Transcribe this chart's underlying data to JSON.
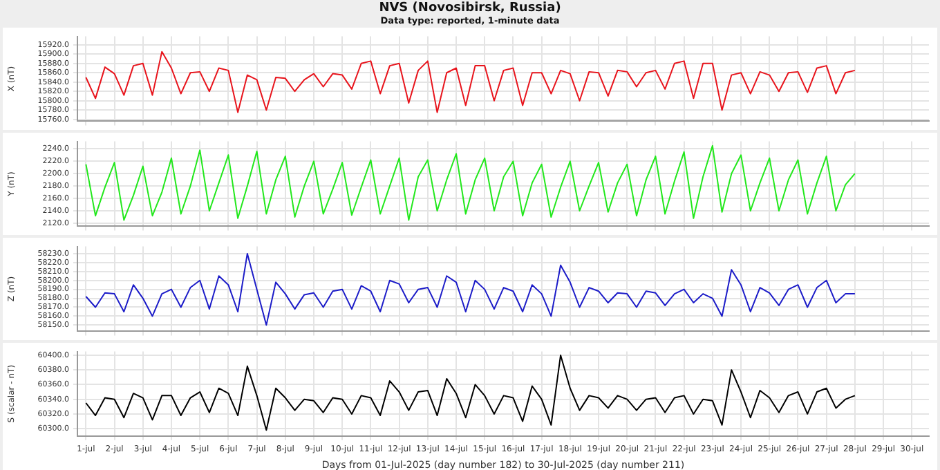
{
  "chart_data": [
    {
      "type": "line",
      "title": "NVS (Novosibirsk, Russia)",
      "subtitle": "Data type: reported, 1-minute data",
      "ylabel": "X (nT)",
      "grid": true,
      "tick_labels": "y",
      "x": [
        "2025-07-01",
        "2025-07-01T08:00",
        "2025-07-01T16:00",
        "2025-07-02",
        "2025-07-02T08:00",
        "2025-07-02T16:00",
        "2025-07-03",
        "2025-07-03T08:00",
        "2025-07-03T16:00",
        "2025-07-04",
        "2025-07-04T08:00",
        "2025-07-04T16:00",
        "2025-07-05",
        "2025-07-05T08:00",
        "2025-07-05T16:00",
        "2025-07-06",
        "2025-07-06T08:00",
        "2025-07-06T16:00",
        "2025-07-07",
        "2025-07-07T08:00",
        "2025-07-07T16:00",
        "2025-07-08",
        "2025-07-08T08:00",
        "2025-07-08T16:00",
        "2025-07-09",
        "2025-07-09T08:00",
        "2025-07-09T16:00",
        "2025-07-10",
        "2025-07-10T08:00",
        "2025-07-10T16:00",
        "2025-07-11",
        "2025-07-11T08:00",
        "2025-07-11T16:00",
        "2025-07-12",
        "2025-07-12T08:00",
        "2025-07-12T16:00",
        "2025-07-13",
        "2025-07-13T08:00",
        "2025-07-13T16:00",
        "2025-07-14",
        "2025-07-14T08:00",
        "2025-07-14T16:00",
        "2025-07-15",
        "2025-07-15T08:00",
        "2025-07-15T16:00",
        "2025-07-16",
        "2025-07-16T08:00",
        "2025-07-16T16:00",
        "2025-07-17",
        "2025-07-17T08:00",
        "2025-07-17T16:00",
        "2025-07-18",
        "2025-07-18T08:00",
        "2025-07-18T16:00",
        "2025-07-19",
        "2025-07-19T08:00",
        "2025-07-19T16:00",
        "2025-07-20",
        "2025-07-20T08:00",
        "2025-07-20T16:00",
        "2025-07-21",
        "2025-07-21T08:00",
        "2025-07-21T16:00",
        "2025-07-22",
        "2025-07-22T08:00",
        "2025-07-22T16:00",
        "2025-07-23",
        "2025-07-23T08:00",
        "2025-07-23T16:00",
        "2025-07-24",
        "2025-07-24T08:00",
        "2025-07-24T16:00",
        "2025-07-25",
        "2025-07-25T08:00",
        "2025-07-25T16:00",
        "2025-07-26",
        "2025-07-26T08:00",
        "2025-07-26T16:00",
        "2025-07-27",
        "2025-07-27T08:00",
        "2025-07-27T16:00",
        "2025-07-28"
      ],
      "series": [
        {
          "color": "#e8141c",
          "values": [
            15850,
            15805,
            15872,
            15858,
            15812,
            15875,
            15880,
            15812,
            15905,
            15870,
            15815,
            15860,
            15862,
            15820,
            15870,
            15865,
            15775,
            15855,
            15845,
            15780,
            15850,
            15848,
            15820,
            15845,
            15858,
            15830,
            15858,
            15855,
            15825,
            15880,
            15885,
            15815,
            15875,
            15880,
            15795,
            15865,
            15885,
            15775,
            15860,
            15870,
            15790,
            15875,
            15875,
            15800,
            15865,
            15870,
            15790,
            15860,
            15860,
            15815,
            15865,
            15858,
            15800,
            15862,
            15860,
            15810,
            15865,
            15862,
            15830,
            15860,
            15865,
            15825,
            15880,
            15885,
            15805,
            15880,
            15880,
            15780,
            15855,
            15860,
            15815,
            15862,
            15855,
            15820,
            15860,
            15862,
            15818,
            15870,
            15875,
            15815,
            15860,
            15865
          ]
        }
      ],
      "xlim": [
        "2025-06-30T16:48",
        "2025-07-30T14:24"
      ],
      "xticks": [
        {
          "value": "2025-07-01",
          "label": null
        },
        {
          "value": "2025-07-02",
          "label": null
        },
        {
          "value": "2025-07-03",
          "label": null
        },
        {
          "value": "2025-07-04",
          "label": null
        },
        {
          "value": "2025-07-05",
          "label": null
        },
        {
          "value": "2025-07-06",
          "label": null
        },
        {
          "value": "2025-07-07",
          "label": null
        },
        {
          "value": "2025-07-08",
          "label": null
        },
        {
          "value": "2025-07-09",
          "label": null
        },
        {
          "value": "2025-07-10",
          "label": null
        },
        {
          "value": "2025-07-11",
          "label": null
        },
        {
          "value": "2025-07-12",
          "label": null
        },
        {
          "value": "2025-07-13",
          "label": null
        },
        {
          "value": "2025-07-14",
          "label": null
        },
        {
          "value": "2025-07-15",
          "label": null
        },
        {
          "value": "2025-07-16",
          "label": null
        },
        {
          "value": "2025-07-17",
          "label": null
        },
        {
          "value": "2025-07-18",
          "label": null
        },
        {
          "value": "2025-07-19",
          "label": null
        },
        {
          "value": "2025-07-20",
          "label": null
        },
        {
          "value": "2025-07-21",
          "label": null
        },
        {
          "value": "2025-07-22",
          "label": null
        },
        {
          "value": "2025-07-23",
          "label": null
        },
        {
          "value": "2025-07-24",
          "label": null
        },
        {
          "value": "2025-07-25",
          "label": null
        },
        {
          "value": "2025-07-26",
          "label": null
        },
        {
          "value": "2025-07-27",
          "label": null
        },
        {
          "value": "2025-07-28",
          "label": null
        },
        {
          "value": "2025-07-29",
          "label": null
        },
        {
          "value": "2025-07-30",
          "label": null
        }
      ],
      "ylim": [
        15756,
        15938
      ],
      "yticks": [
        {
          "value": 15760,
          "label": "15760.0"
        },
        {
          "value": 15780,
          "label": "15780.0"
        },
        {
          "value": 15800,
          "label": "15800.0"
        },
        {
          "value": 15820,
          "label": "15820.0"
        },
        {
          "value": 15840,
          "label": "15840.0"
        },
        {
          "value": 15860,
          "label": "15860.0"
        },
        {
          "value": 15880,
          "label": "15880.0"
        },
        {
          "value": 15900,
          "label": "15900.0"
        },
        {
          "value": 15920,
          "label": "15920.0"
        }
      ]
    },
    {
      "type": "line",
      "ylabel": "Y (nT)",
      "grid": true,
      "tick_labels": "y",
      "x": [
        "2025-07-01",
        "2025-07-01T08:00",
        "2025-07-01T16:00",
        "2025-07-02",
        "2025-07-02T08:00",
        "2025-07-02T16:00",
        "2025-07-03",
        "2025-07-03T08:00",
        "2025-07-03T16:00",
        "2025-07-04",
        "2025-07-04T08:00",
        "2025-07-04T16:00",
        "2025-07-05",
        "2025-07-05T08:00",
        "2025-07-05T16:00",
        "2025-07-06",
        "2025-07-06T08:00",
        "2025-07-06T16:00",
        "2025-07-07",
        "2025-07-07T08:00",
        "2025-07-07T16:00",
        "2025-07-08",
        "2025-07-08T08:00",
        "2025-07-08T16:00",
        "2025-07-09",
        "2025-07-09T08:00",
        "2025-07-09T16:00",
        "2025-07-10",
        "2025-07-10T08:00",
        "2025-07-10T16:00",
        "2025-07-11",
        "2025-07-11T08:00",
        "2025-07-11T16:00",
        "2025-07-12",
        "2025-07-12T08:00",
        "2025-07-12T16:00",
        "2025-07-13",
        "2025-07-13T08:00",
        "2025-07-13T16:00",
        "2025-07-14",
        "2025-07-14T08:00",
        "2025-07-14T16:00",
        "2025-07-15",
        "2025-07-15T08:00",
        "2025-07-15T16:00",
        "2025-07-16",
        "2025-07-16T08:00",
        "2025-07-16T16:00",
        "2025-07-17",
        "2025-07-17T08:00",
        "2025-07-17T16:00",
        "2025-07-18",
        "2025-07-18T08:00",
        "2025-07-18T16:00",
        "2025-07-19",
        "2025-07-19T08:00",
        "2025-07-19T16:00",
        "2025-07-20",
        "2025-07-20T08:00",
        "2025-07-20T16:00",
        "2025-07-21",
        "2025-07-21T08:00",
        "2025-07-21T16:00",
        "2025-07-22",
        "2025-07-22T08:00",
        "2025-07-22T16:00",
        "2025-07-23",
        "2025-07-23T08:00",
        "2025-07-23T16:00",
        "2025-07-24",
        "2025-07-24T08:00",
        "2025-07-24T16:00",
        "2025-07-25",
        "2025-07-25T08:00",
        "2025-07-25T16:00",
        "2025-07-26",
        "2025-07-26T08:00",
        "2025-07-26T16:00",
        "2025-07-27",
        "2025-07-27T08:00",
        "2025-07-27T16:00",
        "2025-07-28"
      ],
      "series": [
        {
          "color": "#22e81c",
          "values": [
            2215,
            2132,
            2178,
            2218,
            2125,
            2165,
            2212,
            2132,
            2170,
            2225,
            2135,
            2180,
            2238,
            2140,
            2185,
            2230,
            2128,
            2180,
            2236,
            2135,
            2190,
            2228,
            2130,
            2180,
            2220,
            2135,
            2175,
            2218,
            2133,
            2178,
            2222,
            2135,
            2180,
            2225,
            2125,
            2195,
            2222,
            2140,
            2190,
            2232,
            2135,
            2190,
            2225,
            2140,
            2195,
            2220,
            2132,
            2185,
            2215,
            2130,
            2178,
            2220,
            2140,
            2180,
            2218,
            2138,
            2185,
            2215,
            2132,
            2190,
            2228,
            2135,
            2188,
            2235,
            2128,
            2195,
            2245,
            2138,
            2200,
            2230,
            2140,
            2185,
            2225,
            2140,
            2190,
            2222,
            2135,
            2185,
            2228,
            2140,
            2182,
            2200
          ]
        }
      ],
      "xlim": [
        "2025-06-30T16:48",
        "2025-07-30T14:24"
      ],
      "xticks": [
        {
          "value": "2025-07-01",
          "label": null
        },
        {
          "value": "2025-07-02",
          "label": null
        },
        {
          "value": "2025-07-03",
          "label": null
        },
        {
          "value": "2025-07-04",
          "label": null
        },
        {
          "value": "2025-07-05",
          "label": null
        },
        {
          "value": "2025-07-06",
          "label": null
        },
        {
          "value": "2025-07-07",
          "label": null
        },
        {
          "value": "2025-07-08",
          "label": null
        },
        {
          "value": "2025-07-09",
          "label": null
        },
        {
          "value": "2025-07-10",
          "label": null
        },
        {
          "value": "2025-07-11",
          "label": null
        },
        {
          "value": "2025-07-12",
          "label": null
        },
        {
          "value": "2025-07-13",
          "label": null
        },
        {
          "value": "2025-07-14",
          "label": null
        },
        {
          "value": "2025-07-15",
          "label": null
        },
        {
          "value": "2025-07-16",
          "label": null
        },
        {
          "value": "2025-07-17",
          "label": null
        },
        {
          "value": "2025-07-18",
          "label": null
        },
        {
          "value": "2025-07-19",
          "label": null
        },
        {
          "value": "2025-07-20",
          "label": null
        },
        {
          "value": "2025-07-21",
          "label": null
        },
        {
          "value": "2025-07-22",
          "label": null
        },
        {
          "value": "2025-07-23",
          "label": null
        },
        {
          "value": "2025-07-24",
          "label": null
        },
        {
          "value": "2025-07-25",
          "label": null
        },
        {
          "value": "2025-07-26",
          "label": null
        },
        {
          "value": "2025-07-27",
          "label": null
        },
        {
          "value": "2025-07-28",
          "label": null
        },
        {
          "value": "2025-07-29",
          "label": null
        },
        {
          "value": "2025-07-30",
          "label": null
        }
      ],
      "ylim": [
        2115,
        2252
      ],
      "yticks": [
        {
          "value": 2120,
          "label": "2120.0"
        },
        {
          "value": 2140,
          "label": "2140.0"
        },
        {
          "value": 2160,
          "label": "2160.0"
        },
        {
          "value": 2180,
          "label": "2180.0"
        },
        {
          "value": 2200,
          "label": "2200.0"
        },
        {
          "value": 2220,
          "label": "2220.0"
        },
        {
          "value": 2240,
          "label": "2240.0"
        }
      ]
    },
    {
      "type": "line",
      "ylabel": "Z (nT)",
      "grid": true,
      "tick_labels": "y",
      "x": [
        "2025-07-01",
        "2025-07-01T08:00",
        "2025-07-01T16:00",
        "2025-07-02",
        "2025-07-02T08:00",
        "2025-07-02T16:00",
        "2025-07-03",
        "2025-07-03T08:00",
        "2025-07-03T16:00",
        "2025-07-04",
        "2025-07-04T08:00",
        "2025-07-04T16:00",
        "2025-07-05",
        "2025-07-05T08:00",
        "2025-07-05T16:00",
        "2025-07-06",
        "2025-07-06T08:00",
        "2025-07-06T16:00",
        "2025-07-07",
        "2025-07-07T08:00",
        "2025-07-07T16:00",
        "2025-07-08",
        "2025-07-08T08:00",
        "2025-07-08T16:00",
        "2025-07-09",
        "2025-07-09T08:00",
        "2025-07-09T16:00",
        "2025-07-10",
        "2025-07-10T08:00",
        "2025-07-10T16:00",
        "2025-07-11",
        "2025-07-11T08:00",
        "2025-07-11T16:00",
        "2025-07-12",
        "2025-07-12T08:00",
        "2025-07-12T16:00",
        "2025-07-13",
        "2025-07-13T08:00",
        "2025-07-13T16:00",
        "2025-07-14",
        "2025-07-14T08:00",
        "2025-07-14T16:00",
        "2025-07-15",
        "2025-07-15T08:00",
        "2025-07-15T16:00",
        "2025-07-16",
        "2025-07-16T08:00",
        "2025-07-16T16:00",
        "2025-07-17",
        "2025-07-17T08:00",
        "2025-07-17T16:00",
        "2025-07-18",
        "2025-07-18T08:00",
        "2025-07-18T16:00",
        "2025-07-19",
        "2025-07-19T08:00",
        "2025-07-19T16:00",
        "2025-07-20",
        "2025-07-20T08:00",
        "2025-07-20T16:00",
        "2025-07-21",
        "2025-07-21T08:00",
        "2025-07-21T16:00",
        "2025-07-22",
        "2025-07-22T08:00",
        "2025-07-22T16:00",
        "2025-07-23",
        "2025-07-23T08:00",
        "2025-07-23T16:00",
        "2025-07-24",
        "2025-07-24T08:00",
        "2025-07-24T16:00",
        "2025-07-25",
        "2025-07-25T08:00",
        "2025-07-25T16:00",
        "2025-07-26",
        "2025-07-26T08:00",
        "2025-07-26T16:00",
        "2025-07-27",
        "2025-07-27T08:00",
        "2025-07-27T16:00",
        "2025-07-28"
      ],
      "series": [
        {
          "color": "#1c1cc8",
          "values": [
            58182,
            58170,
            58186,
            58185,
            58165,
            58195,
            58180,
            58160,
            58185,
            58190,
            58170,
            58192,
            58200,
            58168,
            58205,
            58195,
            58165,
            58230,
            58190,
            58150,
            58198,
            58185,
            58168,
            58184,
            58186,
            58170,
            58188,
            58190,
            58168,
            58194,
            58188,
            58165,
            58200,
            58196,
            58175,
            58190,
            58192,
            58170,
            58205,
            58198,
            58165,
            58200,
            58190,
            58168,
            58192,
            58188,
            58165,
            58195,
            58185,
            58160,
            58217,
            58198,
            58170,
            58192,
            58188,
            58175,
            58186,
            58185,
            58170,
            58188,
            58186,
            58172,
            58185,
            58190,
            58175,
            58185,
            58180,
            58160,
            58212,
            58195,
            58165,
            58192,
            58186,
            58172,
            58190,
            58195,
            58170,
            58192,
            58200,
            58175,
            58185,
            58185
          ]
        }
      ],
      "xlim": [
        "2025-06-30T16:48",
        "2025-07-30T14:24"
      ],
      "xticks": [
        {
          "value": "2025-07-01",
          "label": null
        },
        {
          "value": "2025-07-02",
          "label": null
        },
        {
          "value": "2025-07-03",
          "label": null
        },
        {
          "value": "2025-07-04",
          "label": null
        },
        {
          "value": "2025-07-05",
          "label": null
        },
        {
          "value": "2025-07-06",
          "label": null
        },
        {
          "value": "2025-07-07",
          "label": null
        },
        {
          "value": "2025-07-08",
          "label": null
        },
        {
          "value": "2025-07-09",
          "label": null
        },
        {
          "value": "2025-07-10",
          "label": null
        },
        {
          "value": "2025-07-11",
          "label": null
        },
        {
          "value": "2025-07-12",
          "label": null
        },
        {
          "value": "2025-07-13",
          "label": null
        },
        {
          "value": "2025-07-14",
          "label": null
        },
        {
          "value": "2025-07-15",
          "label": null
        },
        {
          "value": "2025-07-16",
          "label": null
        },
        {
          "value": "2025-07-17",
          "label": null
        },
        {
          "value": "2025-07-18",
          "label": null
        },
        {
          "value": "2025-07-19",
          "label": null
        },
        {
          "value": "2025-07-20",
          "label": null
        },
        {
          "value": "2025-07-21",
          "label": null
        },
        {
          "value": "2025-07-22",
          "label": null
        },
        {
          "value": "2025-07-23",
          "label": null
        },
        {
          "value": "2025-07-24",
          "label": null
        },
        {
          "value": "2025-07-25",
          "label": null
        },
        {
          "value": "2025-07-26",
          "label": null
        },
        {
          "value": "2025-07-27",
          "label": null
        },
        {
          "value": "2025-07-28",
          "label": null
        },
        {
          "value": "2025-07-29",
          "label": null
        },
        {
          "value": "2025-07-30",
          "label": null
        }
      ],
      "ylim": [
        58143,
        58238
      ],
      "yticks": [
        {
          "value": 58150,
          "label": "58150.0"
        },
        {
          "value": 58160,
          "label": "58160.0"
        },
        {
          "value": 58170,
          "label": "58170.0"
        },
        {
          "value": 58180,
          "label": "58180.0"
        },
        {
          "value": 58190,
          "label": "58190.0"
        },
        {
          "value": 58200,
          "label": "58200.0"
        },
        {
          "value": 58210,
          "label": "58210.0"
        },
        {
          "value": 58220,
          "label": "58220.0"
        },
        {
          "value": 58230,
          "label": "58230.0"
        }
      ]
    },
    {
      "type": "line",
      "ylabel": "S (scalar - nT)",
      "xlabel": "Days from 01-Jul-2025 (day number 182) to 30-Jul-2025 (day number 211)",
      "grid": true,
      "x": [
        "2025-07-01",
        "2025-07-01T08:00",
        "2025-07-01T16:00",
        "2025-07-02",
        "2025-07-02T08:00",
        "2025-07-02T16:00",
        "2025-07-03",
        "2025-07-03T08:00",
        "2025-07-03T16:00",
        "2025-07-04",
        "2025-07-04T08:00",
        "2025-07-04T16:00",
        "2025-07-05",
        "2025-07-05T08:00",
        "2025-07-05T16:00",
        "2025-07-06",
        "2025-07-06T08:00",
        "2025-07-06T16:00",
        "2025-07-07",
        "2025-07-07T08:00",
        "2025-07-07T16:00",
        "2025-07-08",
        "2025-07-08T08:00",
        "2025-07-08T16:00",
        "2025-07-09",
        "2025-07-09T08:00",
        "2025-07-09T16:00",
        "2025-07-10",
        "2025-07-10T08:00",
        "2025-07-10T16:00",
        "2025-07-11",
        "2025-07-11T08:00",
        "2025-07-11T16:00",
        "2025-07-12",
        "2025-07-12T08:00",
        "2025-07-12T16:00",
        "2025-07-13",
        "2025-07-13T08:00",
        "2025-07-13T16:00",
        "2025-07-14",
        "2025-07-14T08:00",
        "2025-07-14T16:00",
        "2025-07-15",
        "2025-07-15T08:00",
        "2025-07-15T16:00",
        "2025-07-16",
        "2025-07-16T08:00",
        "2025-07-16T16:00",
        "2025-07-17",
        "2025-07-17T08:00",
        "2025-07-17T16:00",
        "2025-07-18",
        "2025-07-18T08:00",
        "2025-07-18T16:00",
        "2025-07-19",
        "2025-07-19T08:00",
        "2025-07-19T16:00",
        "2025-07-20",
        "2025-07-20T08:00",
        "2025-07-20T16:00",
        "2025-07-21",
        "2025-07-21T08:00",
        "2025-07-21T16:00",
        "2025-07-22",
        "2025-07-22T08:00",
        "2025-07-22T16:00",
        "2025-07-23",
        "2025-07-23T08:00",
        "2025-07-23T16:00",
        "2025-07-24",
        "2025-07-24T08:00",
        "2025-07-24T16:00",
        "2025-07-25",
        "2025-07-25T08:00",
        "2025-07-25T16:00",
        "2025-07-26",
        "2025-07-26T08:00",
        "2025-07-26T16:00",
        "2025-07-27",
        "2025-07-27T08:00",
        "2025-07-27T16:00",
        "2025-07-28"
      ],
      "series": [
        {
          "color": "#000000",
          "values": [
            60335,
            60318,
            60342,
            60340,
            60315,
            60348,
            60342,
            60312,
            60345,
            60345,
            60318,
            60342,
            60350,
            60322,
            60355,
            60348,
            60318,
            60385,
            60345,
            60298,
            60355,
            60342,
            60325,
            60340,
            60338,
            60322,
            60342,
            60340,
            60320,
            60345,
            60342,
            60318,
            60365,
            60350,
            60325,
            60350,
            60352,
            60318,
            60368,
            60348,
            60315,
            60360,
            60345,
            60320,
            60345,
            60342,
            60310,
            60358,
            60340,
            60305,
            60400,
            60355,
            60325,
            60345,
            60342,
            60328,
            60345,
            60340,
            60325,
            60340,
            60342,
            60322,
            60342,
            60345,
            60320,
            60340,
            60338,
            60305,
            60380,
            60350,
            60315,
            60352,
            60342,
            60322,
            60345,
            60350,
            60320,
            60350,
            60355,
            60328,
            60340,
            60345
          ]
        }
      ],
      "xlim": [
        "2025-06-30T16:48",
        "2025-07-30T14:24"
      ],
      "xticks": [
        {
          "value": "2025-07-01",
          "label": "1-jul"
        },
        {
          "value": "2025-07-02",
          "label": "2-jul"
        },
        {
          "value": "2025-07-03",
          "label": "3-jul"
        },
        {
          "value": "2025-07-04",
          "label": "4-jul"
        },
        {
          "value": "2025-07-05",
          "label": "5-jul"
        },
        {
          "value": "2025-07-06",
          "label": "6-jul"
        },
        {
          "value": "2025-07-07",
          "label": "7-jul"
        },
        {
          "value": "2025-07-08",
          "label": "8-jul"
        },
        {
          "value": "2025-07-09",
          "label": "9-jul"
        },
        {
          "value": "2025-07-10",
          "label": "10-jul"
        },
        {
          "value": "2025-07-11",
          "label": "11-jul"
        },
        {
          "value": "2025-07-12",
          "label": "12-jul"
        },
        {
          "value": "2025-07-13",
          "label": "13-jul"
        },
        {
          "value": "2025-07-14",
          "label": "14-jul"
        },
        {
          "value": "2025-07-15",
          "label": "15-jul"
        },
        {
          "value": "2025-07-16",
          "label": "16-jul"
        },
        {
          "value": "2025-07-17",
          "label": "17-jul"
        },
        {
          "value": "2025-07-18",
          "label": "18-jul"
        },
        {
          "value": "2025-07-19",
          "label": "19-jul"
        },
        {
          "value": "2025-07-20",
          "label": "20-jul"
        },
        {
          "value": "2025-07-21",
          "label": "21-jul"
        },
        {
          "value": "2025-07-22",
          "label": "22-jul"
        },
        {
          "value": "2025-07-23",
          "label": "23-jul"
        },
        {
          "value": "2025-07-24",
          "label": "24-jul"
        },
        {
          "value": "2025-07-25",
          "label": "25-jul"
        },
        {
          "value": "2025-07-26",
          "label": "26-jul"
        },
        {
          "value": "2025-07-27",
          "label": "27-jul"
        },
        {
          "value": "2025-07-28",
          "label": "28-jul"
        },
        {
          "value": "2025-07-29",
          "label": "29-jul"
        },
        {
          "value": "2025-07-30",
          "label": "30-jul"
        }
      ],
      "ylim": [
        60290,
        60405
      ],
      "yticks": [
        {
          "value": 60300,
          "label": "60300.0"
        },
        {
          "value": 60320,
          "label": "60320.0"
        },
        {
          "value": 60340,
          "label": "60340.0"
        },
        {
          "value": 60360,
          "label": "60360.0"
        },
        {
          "value": 60380,
          "label": "60380.0"
        },
        {
          "value": 60400,
          "label": "60400.0"
        }
      ]
    }
  ]
}
